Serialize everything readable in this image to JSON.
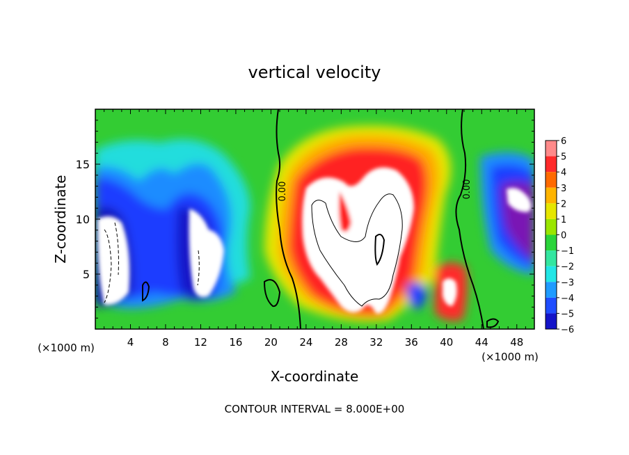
{
  "chart_data": {
    "type": "heatmap",
    "title": "vertical velocity",
    "xlabel": "X-coordinate",
    "ylabel": "Z-coordinate",
    "x_unit": "(×1000 m)",
    "xlim": [
      0,
      50
    ],
    "ylim": [
      0,
      20
    ],
    "x_ticks": [
      4,
      8,
      12,
      16,
      20,
      24,
      28,
      32,
      36,
      40,
      44,
      48
    ],
    "y_ticks": [
      5,
      10,
      15
    ],
    "colorbar": {
      "ticks": [
        6,
        5,
        4,
        3,
        2,
        1,
        0,
        -1,
        -2,
        -3,
        -4,
        -5,
        -6
      ],
      "colors": [
        "#ff8a8a",
        "#ff2a2a",
        "#ff6a00",
        "#ffb400",
        "#e6e600",
        "#9ae600",
        "#2ad43a",
        "#33e6a0",
        "#22e6e6",
        "#1f9bff",
        "#1f4dff",
        "#1414c8",
        "#7a12b4"
      ]
    },
    "contour_labels": [
      "0.00",
      "0.00"
    ],
    "footer": "CONTOUR INTERVAL = 8.000E+00",
    "features": {
      "updraft": {
        "center": [
          31,
          10
        ],
        "max_value": "> 6",
        "color": "white"
      },
      "downdrafts": [
        {
          "center": [
            1.5,
            6.5
          ],
          "value": "< -6"
        },
        {
          "center": [
            12.5,
            7
          ],
          "value": "< -6"
        },
        {
          "center": [
            47.5,
            10.5
          ],
          "value": "< -6"
        }
      ]
    }
  }
}
